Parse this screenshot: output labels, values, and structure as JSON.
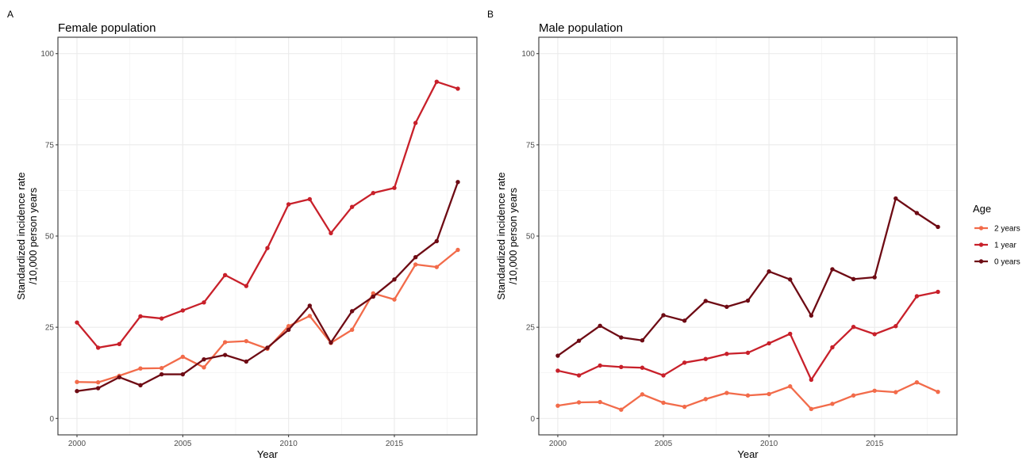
{
  "colors": {
    "2 years": "#F26B4A",
    "1 year": "#C8202A",
    "0 years": "#6E0B14"
  },
  "legend": {
    "title": "Age",
    "items": [
      "2 years",
      "1 year",
      "0 years"
    ]
  },
  "chart_data": [
    {
      "type": "line",
      "panel": "A",
      "title": "Female population",
      "xlabel": "Year",
      "ylabel": [
        "Standardized incidence rate",
        "/10,000 person years"
      ],
      "xlim": [
        1999.1,
        2018.9
      ],
      "ylim": [
        -4.5,
        104.5
      ],
      "xticks": [
        2000,
        2005,
        2010,
        2015
      ],
      "yticks": [
        0,
        25,
        50,
        75,
        100
      ],
      "grid": true,
      "x": [
        2000,
        2001,
        2002,
        2003,
        2004,
        2005,
        2006,
        2007,
        2008,
        2009,
        2010,
        2011,
        2012,
        2013,
        2014,
        2015,
        2016,
        2017,
        2018
      ],
      "series": [
        {
          "name": "2 years",
          "values": [
            10.0,
            9.9,
            11.7,
            13.7,
            13.8,
            16.9,
            14.0,
            20.9,
            21.2,
            19.1,
            25.3,
            28.1,
            20.7,
            24.3,
            34.3,
            32.6,
            42.2,
            41.5,
            46.2
          ]
        },
        {
          "name": "1 year",
          "values": [
            26.3,
            19.4,
            20.4,
            28.0,
            27.4,
            29.6,
            31.8,
            39.3,
            36.3,
            46.7,
            58.7,
            60.1,
            50.8,
            58.0,
            61.8,
            63.2,
            81.0,
            92.3,
            90.4
          ]
        },
        {
          "name": "0 years",
          "values": [
            7.5,
            8.3,
            11.3,
            9.1,
            12.1,
            12.1,
            16.2,
            17.4,
            15.6,
            19.4,
            24.3,
            30.9,
            20.8,
            29.4,
            33.4,
            38.1,
            44.2,
            48.6,
            64.8
          ]
        }
      ]
    },
    {
      "type": "line",
      "panel": "B",
      "title": "Male population",
      "xlabel": "Year",
      "ylabel": [
        "Standardized incidence rate",
        "/10,000 person years"
      ],
      "xlim": [
        1999.1,
        2018.9
      ],
      "ylim": [
        -4.5,
        104.5
      ],
      "xticks": [
        2000,
        2005,
        2010,
        2015
      ],
      "yticks": [
        0,
        25,
        50,
        75,
        100
      ],
      "grid": true,
      "x": [
        2000,
        2001,
        2002,
        2003,
        2004,
        2005,
        2006,
        2007,
        2008,
        2009,
        2010,
        2011,
        2012,
        2013,
        2014,
        2015,
        2016,
        2017,
        2018
      ],
      "series": [
        {
          "name": "2 years",
          "values": [
            3.5,
            4.4,
            4.5,
            2.4,
            6.6,
            4.3,
            3.2,
            5.3,
            7.0,
            6.3,
            6.7,
            8.8,
            2.6,
            4.0,
            6.3,
            7.6,
            7.2,
            9.9,
            7.3
          ]
        },
        {
          "name": "1 year",
          "values": [
            13.1,
            11.8,
            14.5,
            14.1,
            13.9,
            11.8,
            15.3,
            16.3,
            17.7,
            18.0,
            20.6,
            23.2,
            10.6,
            19.5,
            25.1,
            23.1,
            25.3,
            33.5,
            34.7
          ]
        },
        {
          "name": "0 years",
          "values": [
            17.2,
            21.3,
            25.4,
            22.2,
            21.4,
            28.3,
            26.8,
            32.2,
            30.6,
            32.3,
            40.3,
            38.1,
            28.2,
            40.9,
            38.2,
            38.7,
            60.3,
            56.3,
            52.5
          ]
        }
      ]
    }
  ]
}
